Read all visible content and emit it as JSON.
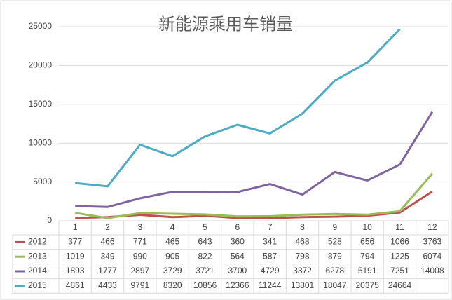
{
  "chart_data": {
    "type": "line",
    "title": "新能源乘用车销量",
    "categories": [
      "1",
      "2",
      "3",
      "4",
      "5",
      "6",
      "7",
      "8",
      "9",
      "10",
      "11",
      "12"
    ],
    "series": [
      {
        "name": "2012",
        "color": "#c0504d",
        "values": [
          377,
          466,
          771,
          465,
          643,
          360,
          341,
          468,
          528,
          656,
          1066,
          3763
        ]
      },
      {
        "name": "2013",
        "color": "#9bbb59",
        "values": [
          1019,
          349,
          990,
          905,
          822,
          564,
          587,
          798,
          879,
          794,
          1225,
          6074
        ]
      },
      {
        "name": "2014",
        "color": "#8064a2",
        "values": [
          1893,
          1777,
          2897,
          3729,
          3721,
          3700,
          4729,
          3372,
          6278,
          5191,
          7251,
          14008
        ]
      },
      {
        "name": "2015",
        "color": "#4bacc6",
        "values": [
          4861,
          4433,
          9791,
          8320,
          10856,
          12366,
          11244,
          13801,
          18047,
          20375,
          24664,
          null
        ]
      }
    ],
    "ylim": [
      0,
      25000
    ],
    "yticks": [
      0,
      5000,
      10000,
      15000,
      20000,
      25000
    ],
    "grid": true
  }
}
